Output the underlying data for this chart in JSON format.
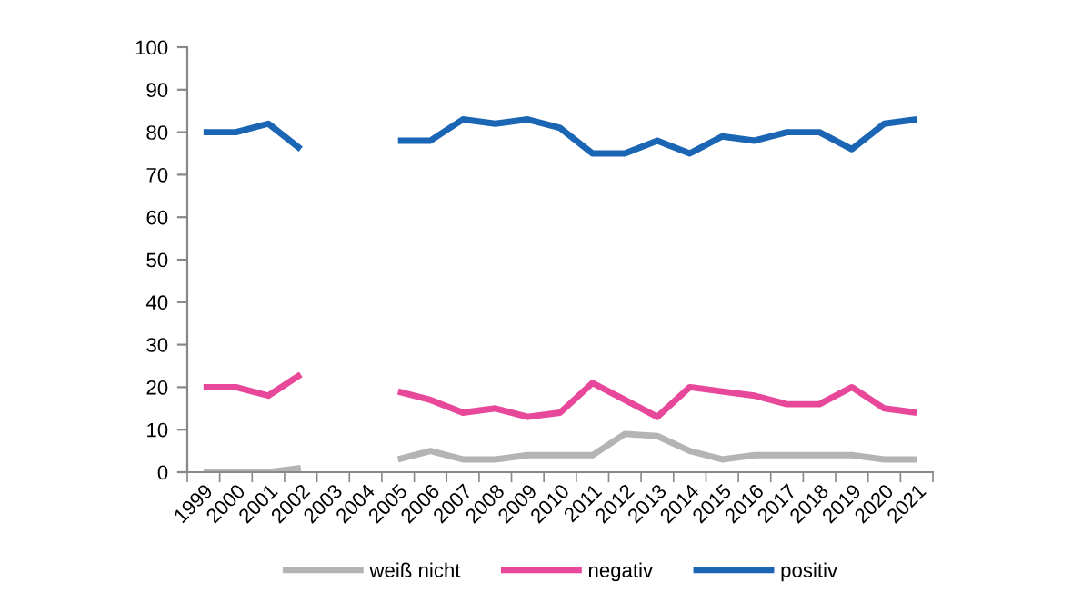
{
  "chart_data": {
    "type": "line",
    "categories": [
      "1999",
      "2000",
      "2001",
      "2002",
      "2003",
      "2004",
      "2005",
      "2006",
      "2007",
      "2008",
      "2009",
      "2010",
      "2011",
      "2012",
      "2013",
      "2014",
      "2015",
      "2016",
      "2017",
      "2018",
      "2019",
      "2020",
      "2021"
    ],
    "series": [
      {
        "name": "weiß nicht",
        "color": "#b4b4b4",
        "values": [
          0,
          0,
          0,
          1,
          null,
          null,
          3,
          5,
          3,
          3,
          4,
          4,
          4,
          9,
          8.5,
          5,
          3,
          4,
          4,
          4,
          4,
          3,
          3
        ]
      },
      {
        "name": "negativ",
        "color": "#e8489a",
        "values": [
          20,
          20,
          18,
          23,
          null,
          null,
          19,
          17,
          14,
          15,
          13,
          14,
          21,
          17,
          13,
          20,
          19,
          18,
          16,
          16,
          20,
          15,
          14
        ]
      },
      {
        "name": "positiv",
        "color": "#1a66b4",
        "values": [
          80,
          80,
          82,
          76,
          null,
          null,
          78,
          78,
          83,
          82,
          83,
          81,
          75,
          75,
          78,
          75,
          79,
          78,
          80,
          80,
          76,
          82,
          83
        ]
      }
    ],
    "ylim": [
      0,
      100
    ],
    "yticks": [
      0,
      10,
      20,
      30,
      40,
      50,
      60,
      70,
      80,
      90,
      100
    ],
    "grid": false,
    "legend": "bottom",
    "marker": "none",
    "line_style": "solid"
  }
}
